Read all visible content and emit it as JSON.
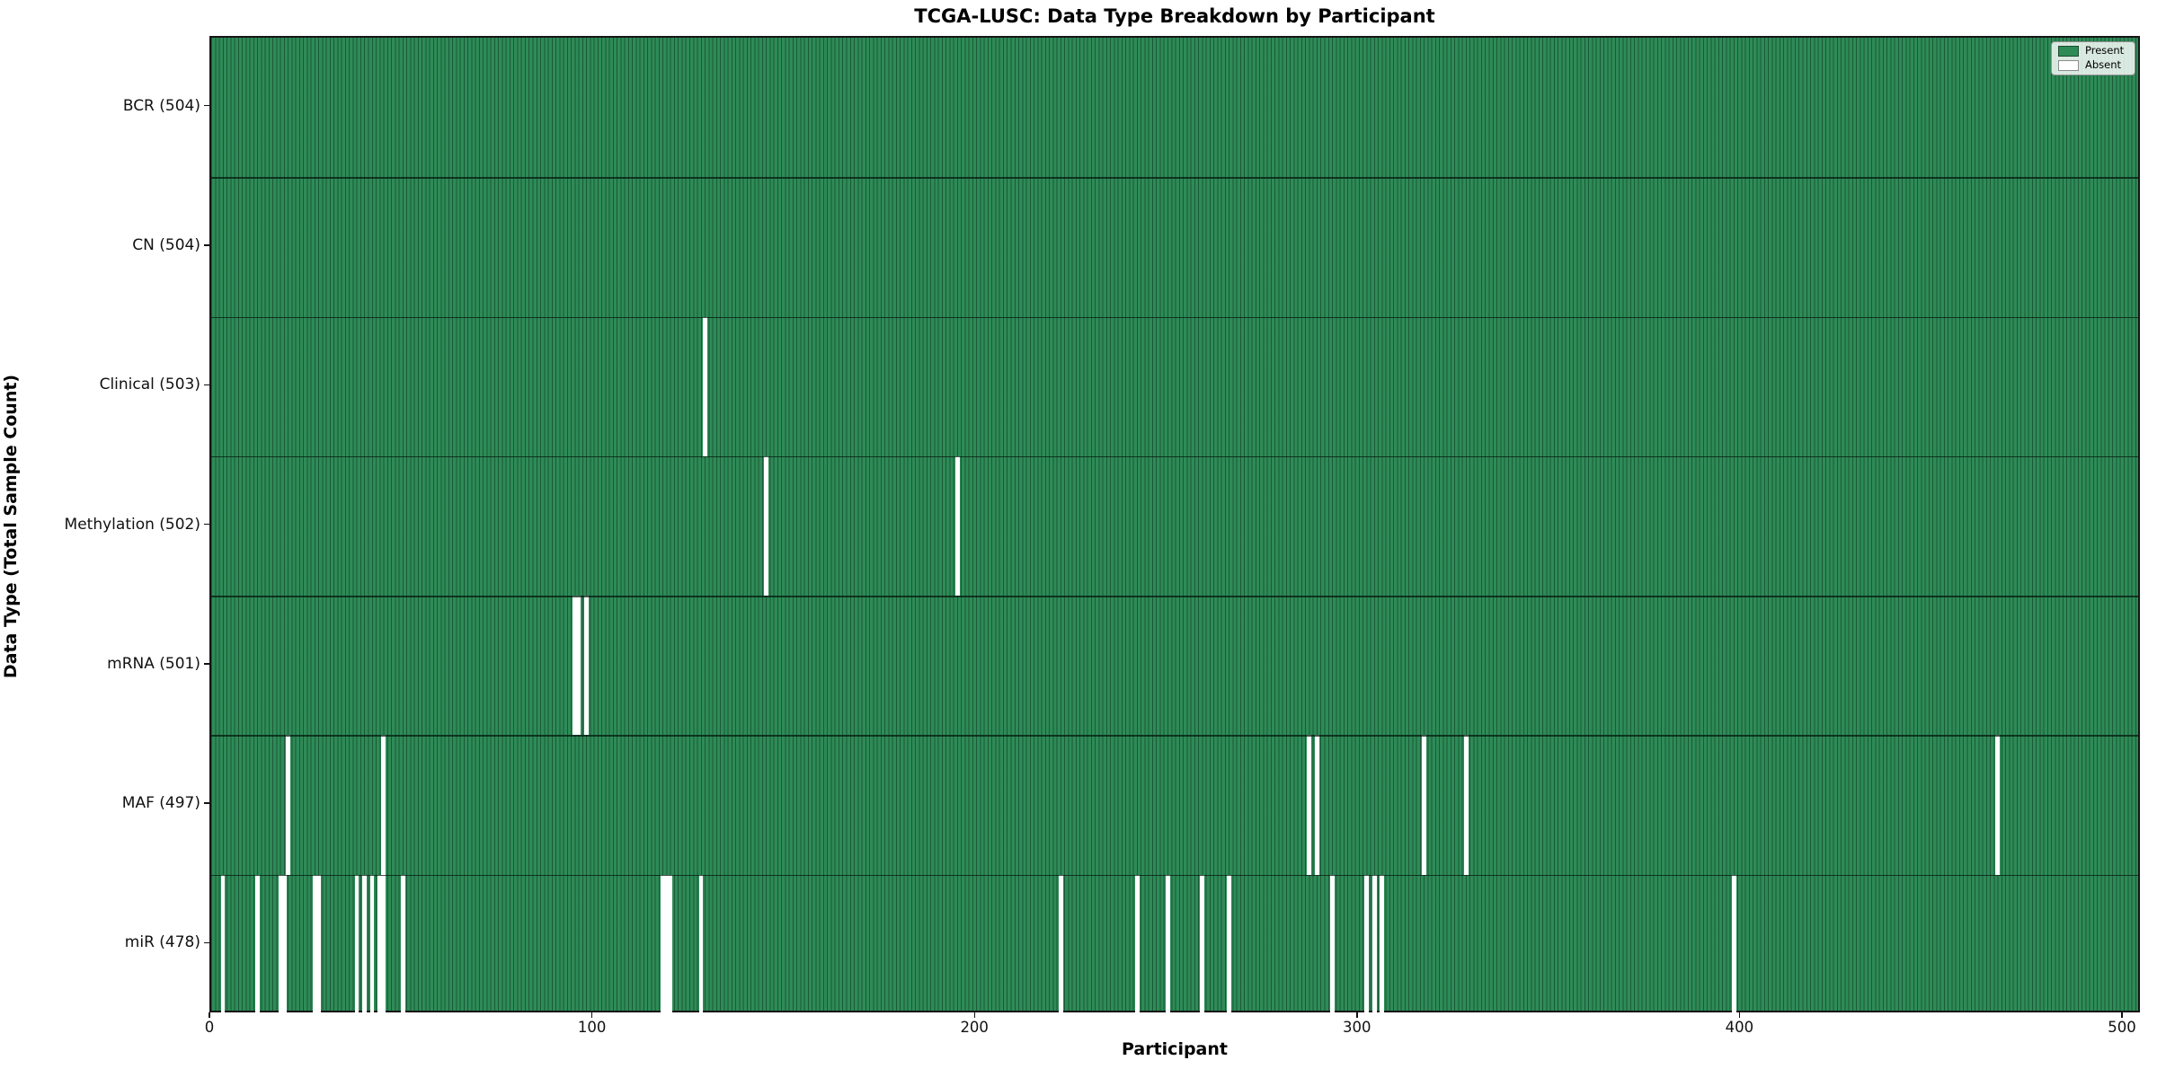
{
  "chart_data": {
    "type": "heatmap",
    "title": "TCGA-LUSC: Data Type Breakdown by Participant",
    "xlabel": "Participant",
    "ylabel": "Data Type (Total Sample Count)",
    "x_ticks": [
      0,
      100,
      200,
      300,
      400,
      500
    ],
    "xlim": [
      0,
      505
    ],
    "n_participants": 504,
    "present_color": "#2e8b57",
    "absent_color": "#ffffff",
    "legend": [
      {
        "label": "Present",
        "color": "#2e8b57"
      },
      {
        "label": "Absent",
        "color": "#ffffff"
      }
    ],
    "rows": [
      {
        "name": "BCR",
        "label": "BCR (504)",
        "total": 504,
        "absent_participants": []
      },
      {
        "name": "CN",
        "label": "CN (504)",
        "total": 504,
        "absent_participants": []
      },
      {
        "name": "Clinical",
        "label": "Clinical (503)",
        "total": 503,
        "absent_participants": [
          129
        ]
      },
      {
        "name": "Methylation",
        "label": "Methylation (502)",
        "total": 502,
        "absent_participants": [
          145,
          195
        ]
      },
      {
        "name": "mRNA",
        "label": "mRNA (501)",
        "total": 501,
        "absent_participants": [
          95,
          96,
          98
        ]
      },
      {
        "name": "MAF",
        "label": "MAF (497)",
        "total": 497,
        "absent_participants": [
          20,
          45,
          287,
          289,
          317,
          328,
          467
        ]
      },
      {
        "name": "miR",
        "label": "miR (478)",
        "total": 478,
        "absent_participants": [
          3,
          12,
          18,
          19,
          27,
          28,
          38,
          40,
          42,
          44,
          45,
          50,
          118,
          119,
          120,
          128,
          222,
          242,
          250,
          259,
          266,
          293,
          302,
          304,
          306,
          398
        ]
      }
    ]
  }
}
